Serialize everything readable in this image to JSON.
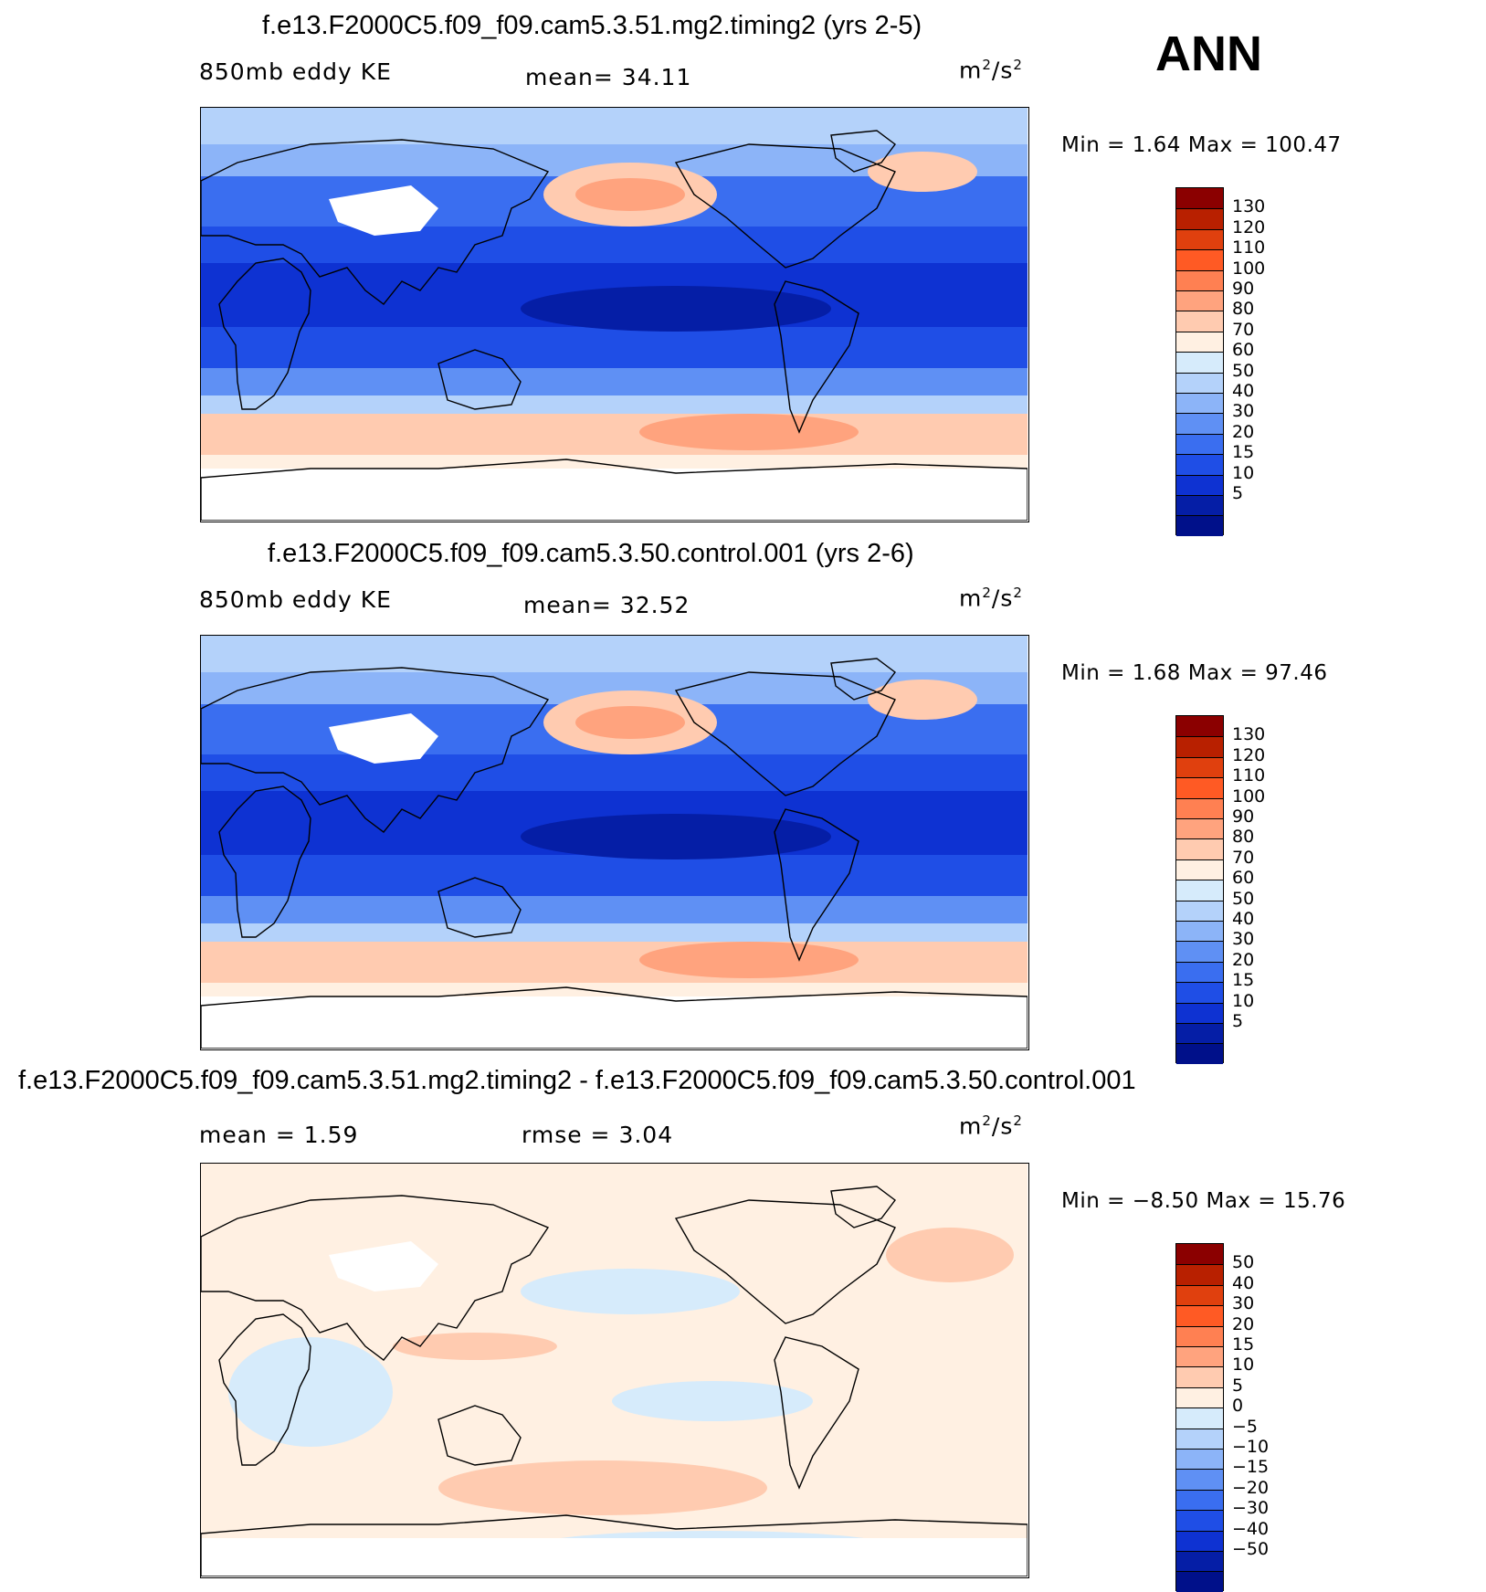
{
  "season": "ANN",
  "panels": [
    {
      "id": "test",
      "title": "f.e13.F2000C5.f09_f09.cam5.3.51.mg2.timing2 (yrs 2-5)",
      "variable": "850mb eddy KE",
      "stat_text": "mean=   34.11",
      "units_base": "m",
      "units_exp1": "2",
      "units_mid": "/s",
      "units_exp2": "2",
      "minmax_text": "Min =     1.64  Max  =  100.47",
      "colorbar": {
        "labels": [
          "130",
          "120",
          "110",
          "100",
          "90",
          "80",
          "70",
          "60",
          "50",
          "40",
          "30",
          "20",
          "15",
          "10",
          "5"
        ],
        "colors": [
          "#8b0000",
          "#b82000",
          "#e0400e",
          "#ff5a24",
          "#ff8052",
          "#ffa37e",
          "#ffcbb0",
          "#fff0e2",
          "#d6ebfb",
          "#b4d2fa",
          "#8cb4f8",
          "#5f90f4",
          "#3a6ef0",
          "#1f4ee6",
          "#0e32d2",
          "#051ea6",
          "#00108a"
        ]
      }
    },
    {
      "id": "control",
      "title": "f.e13.F2000C5.f09_f09.cam5.3.50.control.001 (yrs 2-6)",
      "variable": "850mb eddy KE",
      "stat_text": "mean=   32.52",
      "units_base": "m",
      "units_exp1": "2",
      "units_mid": "/s",
      "units_exp2": "2",
      "minmax_text": "Min =     1.68  Max  =   97.46",
      "colorbar": {
        "labels": [
          "130",
          "120",
          "110",
          "100",
          "90",
          "80",
          "70",
          "60",
          "50",
          "40",
          "30",
          "20",
          "15",
          "10",
          "5"
        ],
        "colors": [
          "#8b0000",
          "#b82000",
          "#e0400e",
          "#ff5a24",
          "#ff8052",
          "#ffa37e",
          "#ffcbb0",
          "#fff0e2",
          "#d6ebfb",
          "#b4d2fa",
          "#8cb4f8",
          "#5f90f4",
          "#3a6ef0",
          "#1f4ee6",
          "#0e32d2",
          "#051ea6",
          "#00108a"
        ]
      }
    },
    {
      "id": "diff",
      "title": "f.e13.F2000C5.f09_f09.cam5.3.51.mg2.timing2 - f.e13.F2000C5.f09_f09.cam5.3.50.control.001",
      "variable": "mean =    1.59",
      "stat_text": "rmse =    3.04",
      "units_base": "m",
      "units_exp1": "2",
      "units_mid": "/s",
      "units_exp2": "2",
      "minmax_text": "Min =   −8.50  Max  =   15.76",
      "colorbar": {
        "labels": [
          "50",
          "40",
          "30",
          "20",
          "15",
          "10",
          "5",
          "0",
          "−5",
          "−10",
          "−15",
          "−20",
          "−30",
          "−40",
          "−50"
        ],
        "colors": [
          "#8b0000",
          "#b82000",
          "#e0400e",
          "#ff5a24",
          "#ff8052",
          "#ffa37e",
          "#ffcbb0",
          "#fff0e2",
          "#d6ebfb",
          "#b4d2fa",
          "#8cb4f8",
          "#5f90f4",
          "#3a6ef0",
          "#1f4ee6",
          "#0e32d2",
          "#051ea6",
          "#00108a"
        ]
      }
    }
  ],
  "map_colors": {
    "land_coast": "#000000",
    "missing": "#ffffff"
  }
}
